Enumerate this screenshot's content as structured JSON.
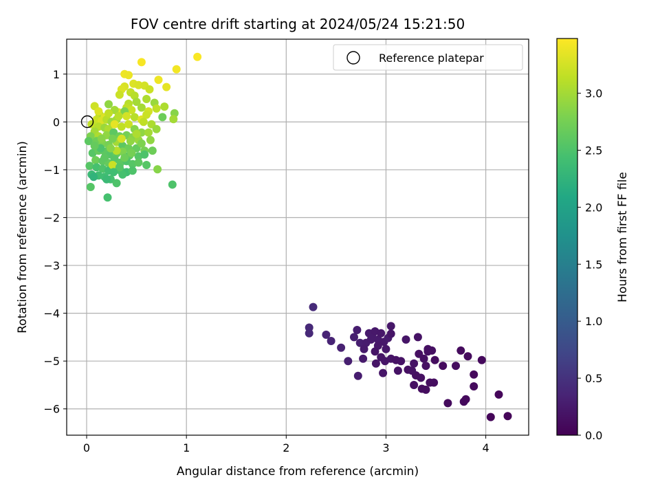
{
  "chart_data": {
    "type": "scatter",
    "title": "FOV centre drift starting at 2024/05/24 15:21:50",
    "xlabel": "Angular distance from reference (arcmin)",
    "ylabel": "Rotation from reference (arcmin)",
    "xlim": [
      -0.2,
      4.43
    ],
    "ylim": [
      -6.55,
      1.73
    ],
    "xticks": [
      0,
      1,
      2,
      3,
      4
    ],
    "yticks": [
      1,
      0,
      -1,
      -2,
      -3,
      -4,
      -5,
      -6
    ],
    "ytick_labels": [
      "1",
      "0",
      "−1",
      "−2",
      "−3",
      "−4",
      "−5",
      "−6"
    ],
    "grid": true,
    "legend": {
      "placement": "upper right",
      "entries": [
        "Reference platepar"
      ]
    },
    "reference_point": {
      "label": "Reference platepar",
      "x": 0,
      "y": 0,
      "marker": "open-circle"
    },
    "colorbar": {
      "label": "Hours from first FF file",
      "min": 0.0,
      "max": 3.48,
      "ticks": [
        0.0,
        0.5,
        1.0,
        1.5,
        2.0,
        2.5,
        3.0
      ],
      "tick_labels": [
        "0.0",
        "0.5",
        "1.0",
        "1.5",
        "2.0",
        "2.5",
        "3.0"
      ],
      "colormap": "viridis"
    },
    "points": [
      [
        1.11,
        1.36,
        3.46
      ],
      [
        0.55,
        1.25,
        3.45
      ],
      [
        0.9,
        1.1,
        3.42
      ],
      [
        0.38,
        1.0,
        3.4
      ],
      [
        0.42,
        0.98,
        3.38
      ],
      [
        0.72,
        0.88,
        3.4
      ],
      [
        0.8,
        0.73,
        3.35
      ],
      [
        0.47,
        0.8,
        3.3
      ],
      [
        0.52,
        0.77,
        3.28
      ],
      [
        0.58,
        0.76,
        3.25
      ],
      [
        0.63,
        0.68,
        3.2
      ],
      [
        0.38,
        0.74,
        3.28
      ],
      [
        0.35,
        0.68,
        3.3
      ],
      [
        0.44,
        0.62,
        3.15
      ],
      [
        0.33,
        0.57,
        3.2
      ],
      [
        0.48,
        0.55,
        3.1
      ],
      [
        0.6,
        0.48,
        3.05
      ],
      [
        0.5,
        0.42,
        3.0
      ],
      [
        0.68,
        0.4,
        2.95
      ],
      [
        0.78,
        0.32,
        3.05
      ],
      [
        0.42,
        0.38,
        3.1
      ],
      [
        0.55,
        0.3,
        3.0
      ],
      [
        0.4,
        0.3,
        3.15
      ],
      [
        0.45,
        0.25,
        3.2
      ],
      [
        0.08,
        0.33,
        3.22
      ],
      [
        0.22,
        0.37,
        2.9
      ],
      [
        0.32,
        0.2,
        3.3
      ],
      [
        0.28,
        0.25,
        3.0
      ],
      [
        0.38,
        0.22,
        2.8
      ],
      [
        0.62,
        0.22,
        3.25
      ],
      [
        0.7,
        0.28,
        3.15
      ],
      [
        0.88,
        0.18,
        2.85
      ],
      [
        0.13,
        0.15,
        3.05
      ],
      [
        0.18,
        0.1,
        3.3
      ],
      [
        0.1,
        0.05,
        3.2
      ],
      [
        0.15,
        0.02,
        3.28
      ],
      [
        0.2,
        0.05,
        3.1
      ],
      [
        0.05,
        -0.05,
        3.15
      ],
      [
        0.25,
        0.0,
        2.95
      ],
      [
        0.3,
        0.05,
        3.0
      ],
      [
        0.48,
        0.1,
        3.1
      ],
      [
        0.55,
        0.05,
        3.3
      ],
      [
        0.6,
        0.15,
        3.2
      ],
      [
        0.76,
        0.1,
        2.7
      ],
      [
        0.87,
        0.06,
        3.0
      ],
      [
        0.65,
        -0.05,
        3.05
      ],
      [
        0.12,
        -0.1,
        3.1
      ],
      [
        0.18,
        -0.12,
        2.95
      ],
      [
        0.22,
        -0.15,
        3.05
      ],
      [
        0.08,
        -0.2,
        3.0
      ],
      [
        0.28,
        -0.05,
        3.35
      ],
      [
        0.35,
        -0.1,
        3.15
      ],
      [
        0.42,
        -0.05,
        3.2
      ],
      [
        0.48,
        -0.15,
        2.85
      ],
      [
        0.55,
        -0.22,
        2.9
      ],
      [
        0.62,
        -0.22,
        3.0
      ],
      [
        0.04,
        -0.3,
        2.8
      ],
      [
        0.12,
        -0.3,
        3.05
      ],
      [
        0.2,
        -0.28,
        2.9
      ],
      [
        0.27,
        -0.22,
        2.6
      ],
      [
        0.33,
        -0.3,
        2.7
      ],
      [
        0.4,
        -0.28,
        2.75
      ],
      [
        0.46,
        -0.32,
        2.85
      ],
      [
        0.52,
        -0.38,
        2.95
      ],
      [
        0.64,
        -0.38,
        2.9
      ],
      [
        0.1,
        -0.4,
        2.7
      ],
      [
        0.16,
        -0.45,
        2.8
      ],
      [
        0.22,
        -0.48,
        2.75
      ],
      [
        0.3,
        -0.42,
        3.0
      ],
      [
        0.36,
        -0.5,
        2.6
      ],
      [
        0.42,
        -0.55,
        2.7
      ],
      [
        0.5,
        -0.55,
        2.65
      ],
      [
        0.58,
        -0.6,
        2.75
      ],
      [
        0.06,
        -0.65,
        2.55
      ],
      [
        0.12,
        -0.6,
        2.65
      ],
      [
        0.18,
        -0.62,
        2.6
      ],
      [
        0.24,
        -0.68,
        2.55
      ],
      [
        0.3,
        -0.66,
        2.65
      ],
      [
        0.36,
        -0.62,
        2.8
      ],
      [
        0.43,
        -0.7,
        2.6
      ],
      [
        0.52,
        -0.72,
        2.55
      ],
      [
        0.58,
        -0.68,
        2.5
      ],
      [
        0.09,
        -0.8,
        2.7
      ],
      [
        0.16,
        -0.82,
        2.6
      ],
      [
        0.22,
        -0.86,
        2.65
      ],
      [
        0.28,
        -0.78,
        2.55
      ],
      [
        0.34,
        -0.85,
        2.6
      ],
      [
        0.4,
        -0.82,
        2.5
      ],
      [
        0.46,
        -0.88,
        2.55
      ],
      [
        0.52,
        -0.85,
        2.6
      ],
      [
        0.03,
        -0.92,
        2.55
      ],
      [
        0.1,
        -0.95,
        2.45
      ],
      [
        0.16,
        -0.98,
        2.5
      ],
      [
        0.22,
        -1.02,
        2.4
      ],
      [
        0.28,
        -0.98,
        2.5
      ],
      [
        0.34,
        -1.02,
        2.45
      ],
      [
        0.4,
        -1.05,
        2.4
      ],
      [
        0.46,
        -1.02,
        2.5
      ],
      [
        0.26,
        -0.9,
        3.2
      ],
      [
        0.3,
        -0.6,
        3.1
      ],
      [
        0.35,
        -0.35,
        3.25
      ],
      [
        0.71,
        -0.99,
        2.85
      ],
      [
        0.05,
        -1.1,
        2.35
      ],
      [
        0.12,
        -1.12,
        2.4
      ],
      [
        0.18,
        -1.15,
        2.4
      ],
      [
        0.24,
        -1.2,
        2.45
      ],
      [
        0.3,
        -1.28,
        2.5
      ],
      [
        0.36,
        -1.1,
        2.45
      ],
      [
        0.07,
        -1.15,
        2.25
      ],
      [
        0.2,
        -1.2,
        2.35
      ],
      [
        0.04,
        -1.36,
        2.55
      ],
      [
        0.21,
        -1.58,
        2.45
      ],
      [
        0.86,
        -1.31,
        2.5
      ],
      [
        0.14,
        -0.55,
        2.5
      ],
      [
        0.26,
        -0.35,
        2.75
      ],
      [
        0.44,
        -0.4,
        2.9
      ],
      [
        0.5,
        -0.25,
        3.05
      ],
      [
        0.57,
        0.0,
        3.15
      ],
      [
        0.32,
        0.12,
        3.1
      ],
      [
        0.24,
        -0.55,
        2.85
      ],
      [
        0.38,
        -0.75,
        2.7
      ],
      [
        0.18,
        -0.75,
        2.6
      ],
      [
        0.55,
        -0.45,
        2.8
      ],
      [
        0.02,
        -0.4,
        2.6
      ],
      [
        0.6,
        -0.9,
        2.55
      ],
      [
        0.66,
        -0.6,
        2.7
      ],
      [
        0.12,
        0.22,
        3.3
      ],
      [
        0.4,
        0.12,
        3.25
      ],
      [
        0.22,
        0.18,
        3.15
      ],
      [
        0.45,
        -0.65,
        2.75
      ],
      [
        0.33,
        -0.95,
        2.55
      ],
      [
        0.27,
        -1.05,
        2.4
      ],
      [
        0.15,
        -0.35,
        2.85
      ],
      [
        0.7,
        -0.15,
        2.95
      ],
      [
        0.08,
        -0.5,
        2.65
      ],
      [
        2.27,
        -3.87,
        0.42
      ],
      [
        2.23,
        -4.3,
        0.4
      ],
      [
        2.23,
        -4.42,
        0.4
      ],
      [
        2.4,
        -4.45,
        0.35
      ],
      [
        2.45,
        -4.58,
        0.35
      ],
      [
        2.55,
        -4.72,
        0.33
      ],
      [
        2.62,
        -5.0,
        0.3
      ],
      [
        2.68,
        -4.5,
        0.3
      ],
      [
        2.71,
        -4.35,
        0.28
      ],
      [
        2.74,
        -4.62,
        0.3
      ],
      [
        2.72,
        -5.31,
        0.28
      ],
      [
        2.77,
        -4.95,
        0.25
      ],
      [
        2.8,
        -4.62,
        0.27
      ],
      [
        2.83,
        -4.42,
        0.25
      ],
      [
        2.86,
        -4.48,
        0.25
      ],
      [
        2.89,
        -4.38,
        0.23
      ],
      [
        2.92,
        -4.55,
        0.25
      ],
      [
        2.95,
        -4.42,
        0.22
      ],
      [
        2.98,
        -4.6,
        0.23
      ],
      [
        3.02,
        -4.52,
        0.25
      ],
      [
        3.05,
        -4.27,
        0.22
      ],
      [
        3.05,
        -4.43,
        0.2
      ],
      [
        2.92,
        -4.68,
        0.22
      ],
      [
        2.89,
        -4.8,
        0.2
      ],
      [
        2.95,
        -4.92,
        0.2
      ],
      [
        3.0,
        -4.75,
        0.22
      ],
      [
        3.05,
        -4.95,
        0.2
      ],
      [
        3.1,
        -4.98,
        0.18
      ],
      [
        3.12,
        -5.2,
        0.18
      ],
      [
        2.9,
        -5.05,
        0.2
      ],
      [
        2.97,
        -5.25,
        0.2
      ],
      [
        3.2,
        -4.55,
        0.2
      ],
      [
        3.22,
        -5.18,
        0.15
      ],
      [
        3.28,
        -5.05,
        0.18
      ],
      [
        3.3,
        -5.3,
        0.15
      ],
      [
        3.32,
        -4.5,
        0.18
      ],
      [
        3.33,
        -4.85,
        0.15
      ],
      [
        3.38,
        -4.95,
        0.15
      ],
      [
        3.4,
        -5.1,
        0.15
      ],
      [
        3.42,
        -4.75,
        0.15
      ],
      [
        3.44,
        -5.45,
        0.12
      ],
      [
        3.46,
        -4.78,
        0.15
      ],
      [
        3.49,
        -4.98,
        0.12
      ],
      [
        3.4,
        -5.6,
        0.12
      ],
      [
        3.48,
        -5.45,
        0.12
      ],
      [
        3.57,
        -5.1,
        0.1
      ],
      [
        3.62,
        -5.88,
        0.1
      ],
      [
        3.7,
        -5.1,
        0.12
      ],
      [
        3.75,
        -4.78,
        0.1
      ],
      [
        3.78,
        -5.85,
        0.1
      ],
      [
        3.8,
        -5.8,
        0.08
      ],
      [
        3.82,
        -4.9,
        0.1
      ],
      [
        3.88,
        -5.28,
        0.08
      ],
      [
        3.88,
        -5.53,
        0.1
      ],
      [
        3.96,
        -4.98,
        0.08
      ],
      [
        4.05,
        -6.17,
        0.05
      ],
      [
        4.13,
        -5.7,
        0.06
      ],
      [
        4.22,
        -6.15,
        0.05
      ],
      [
        3.42,
        -4.8,
        0.15
      ],
      [
        3.28,
        -5.5,
        0.15
      ],
      [
        3.35,
        -5.35,
        0.15
      ],
      [
        2.85,
        -4.55,
        0.25
      ],
      [
        2.78,
        -4.75,
        0.25
      ],
      [
        3.15,
        -5.0,
        0.18
      ],
      [
        2.99,
        -5.0,
        0.2
      ],
      [
        3.36,
        -5.58,
        0.12
      ],
      [
        3.26,
        -5.2,
        0.17
      ]
    ]
  }
}
